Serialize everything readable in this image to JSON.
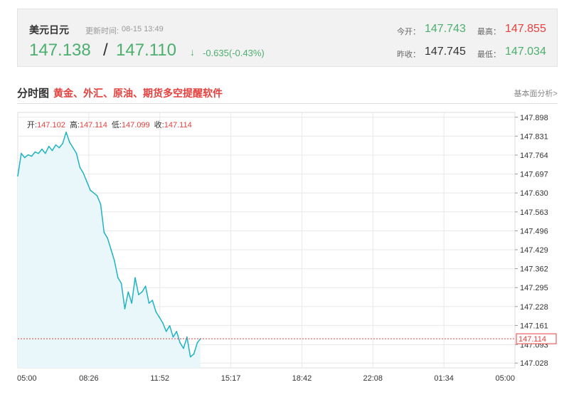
{
  "quote": {
    "name": "美元日元",
    "update_label": "更新时间:",
    "update_time": "08-15 13:49",
    "bid": "147.138",
    "ask": "147.110",
    "arrow": "↓",
    "change": "-0.635(-0.43%)",
    "open_label": "今开：",
    "open": "147.743",
    "high_label": "最高：",
    "high": "147.855",
    "prev_close_label": "昨收：",
    "prev_close": "147.745",
    "low_label": "最低：",
    "low": "147.034"
  },
  "section": {
    "title": "分时图",
    "promo": "黄金、外汇、原油、期货多空提醒软件",
    "link": "基本面分析>"
  },
  "colors": {
    "up": "#e6403e",
    "down": "#4caf6e",
    "line": "#1fb3c3",
    "area": "#e9f7fb"
  },
  "chart_data": {
    "type": "area",
    "ohlc_labels": {
      "open_label": "开:",
      "open": "147.102",
      "high_label": "高:",
      "high": "147.114",
      "low_label": "低:",
      "low": "147.099",
      "close_label": "收:",
      "close": "147.114"
    },
    "x_ticks": [
      "05:00",
      "08:26",
      "11:52",
      "15:17",
      "18:42",
      "22:08",
      "01:34",
      "05:00"
    ],
    "y_ticks": [
      "147.898",
      "147.831",
      "147.764",
      "147.697",
      "147.630",
      "147.563",
      "147.496",
      "147.429",
      "147.362",
      "147.295",
      "147.228",
      "147.161",
      "147.093",
      "147.028"
    ],
    "ylim": [
      147.011,
      147.915
    ],
    "last_price": "147.114",
    "grid": true,
    "y_axis_position": "right",
    "series": [
      {
        "x": [
          "05:00",
          "05:10",
          "05:20",
          "05:30",
          "05:40",
          "05:50",
          "06:00",
          "06:10",
          "06:20",
          "06:30",
          "06:40",
          "06:50",
          "07:00",
          "07:10",
          "07:20",
          "07:30",
          "07:40",
          "07:50",
          "08:00",
          "08:10",
          "08:20",
          "08:30",
          "08:40",
          "08:50",
          "09:00",
          "09:10",
          "09:20",
          "09:30",
          "09:40",
          "09:50",
          "10:00",
          "10:10",
          "10:20",
          "10:30",
          "10:40",
          "10:50",
          "11:00",
          "11:10",
          "11:20",
          "11:30",
          "11:40",
          "11:50",
          "12:00",
          "12:10",
          "12:20",
          "12:30",
          "12:40",
          "12:50",
          "13:00",
          "13:10",
          "13:20",
          "13:30",
          "13:40",
          "13:49"
        ],
        "values": [
          147.69,
          147.77,
          147.755,
          147.765,
          147.76,
          147.775,
          147.77,
          147.785,
          147.77,
          147.795,
          147.78,
          147.8,
          147.79,
          147.805,
          147.845,
          147.81,
          147.79,
          147.77,
          147.72,
          147.7,
          147.67,
          147.64,
          147.63,
          147.62,
          147.59,
          147.49,
          147.47,
          147.43,
          147.39,
          147.33,
          147.31,
          147.22,
          147.28,
          147.24,
          147.33,
          147.27,
          147.28,
          147.3,
          147.24,
          147.25,
          147.21,
          147.19,
          147.17,
          147.14,
          147.16,
          147.12,
          147.14,
          147.1,
          147.08,
          147.12,
          147.05,
          147.06,
          147.1,
          147.114
        ]
      }
    ]
  }
}
